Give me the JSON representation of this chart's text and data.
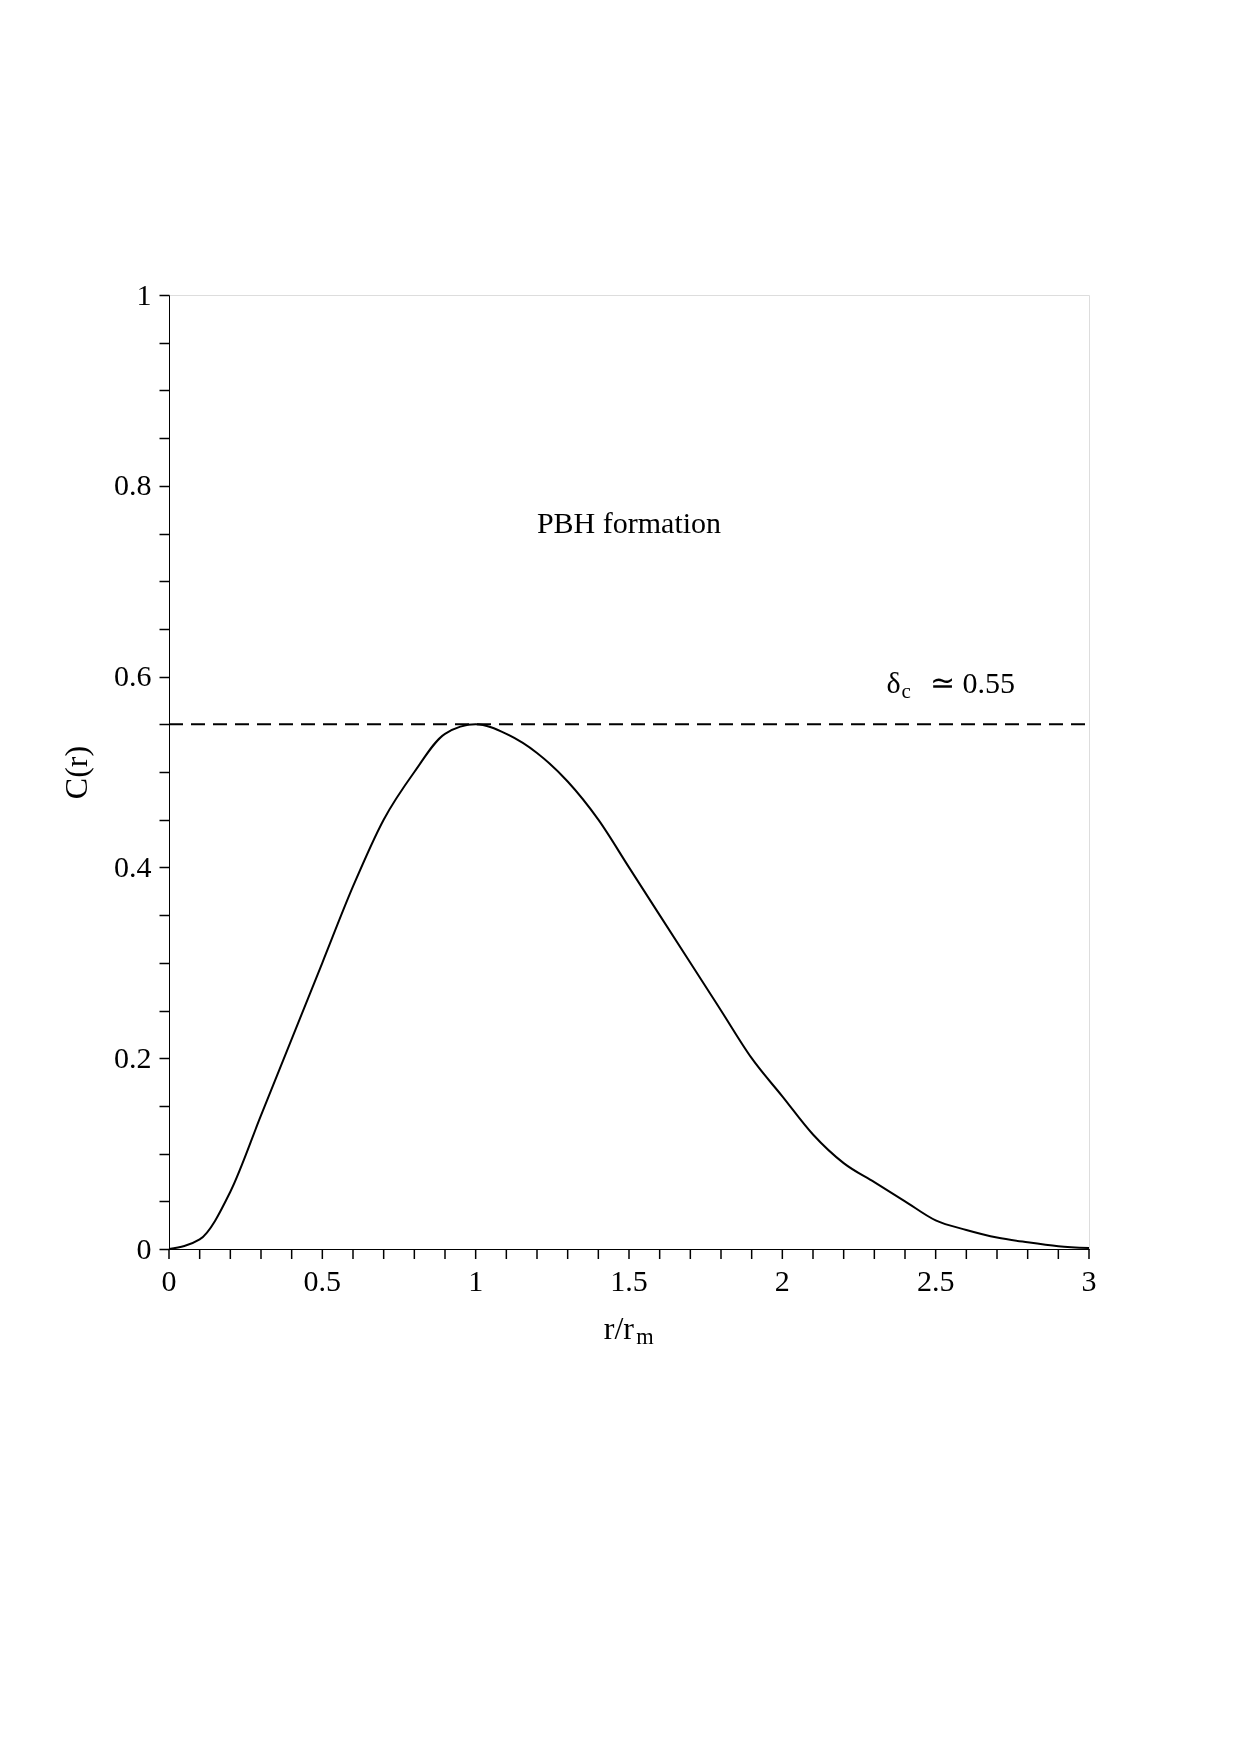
{
  "chart_data": {
    "type": "line",
    "xlabel": "r/r$_{m}$",
    "ylabel": "C(r)",
    "x": [
      0,
      0.1,
      0.2,
      0.3,
      0.4,
      0.5,
      0.6,
      0.7,
      0.8,
      0.9,
      1.0,
      1.1,
      1.2,
      1.3,
      1.4,
      1.5,
      1.6,
      1.7,
      1.8,
      1.9,
      2.0,
      2.1,
      2.2,
      2.3,
      2.4,
      2.5,
      2.6,
      2.7,
      2.8,
      2.9,
      3.0
    ],
    "series": [
      {
        "color": "#000000",
        "values": [
          0,
          0.01,
          0.06,
          0.14,
          0.22,
          0.3,
          0.38,
          0.45,
          0.5,
          0.54,
          0.55,
          0.54,
          0.52,
          0.49,
          0.45,
          0.4,
          0.35,
          0.3,
          0.25,
          0.2,
          0.16,
          0.12,
          0.09,
          0.07,
          0.05,
          0.03,
          0.02,
          0.012,
          0.007,
          0.003,
          0.001
        ]
      }
    ],
    "xlim": [
      0,
      3
    ],
    "ylim": [
      0,
      1
    ],
    "xticks": [
      0,
      {
        "value": 0.1,
        "label": null
      },
      {
        "value": 0.2,
        "label": null
      },
      {
        "value": 0.3,
        "label": null
      },
      {
        "value": 0.4,
        "label": null
      },
      0.5,
      {
        "value": 0.6,
        "label": null
      },
      {
        "value": 0.7,
        "label": null
      },
      {
        "value": 0.8,
        "label": null
      },
      {
        "value": 0.9,
        "label": null
      },
      1,
      {
        "value": 1.1,
        "label": null
      },
      {
        "value": 1.2,
        "label": null
      },
      {
        "value": 1.3,
        "label": null
      },
      {
        "value": 1.4,
        "label": null
      },
      1.5,
      {
        "value": 1.6,
        "label": null
      },
      {
        "value": 1.7,
        "label": null
      },
      {
        "value": 1.8,
        "label": null
      },
      {
        "value": 1.9,
        "label": null
      },
      2,
      {
        "value": 2.1,
        "label": null
      },
      {
        "value": 2.2,
        "label": null
      },
      {
        "value": 2.3,
        "label": null
      },
      {
        "value": 2.4,
        "label": null
      },
      2.5,
      {
        "value": 2.6,
        "label": null
      },
      {
        "value": 2.7,
        "label": null
      },
      {
        "value": 2.8,
        "label": null
      },
      {
        "value": 2.9,
        "label": null
      },
      3
    ],
    "yticks": [
      0,
      {
        "value": 0.05,
        "label": null
      },
      {
        "value": 0.1,
        "label": null
      },
      {
        "value": 0.15,
        "label": null
      },
      0.2,
      {
        "value": 0.25,
        "label": null
      },
      {
        "value": 0.3,
        "label": null
      },
      {
        "value": 0.35,
        "label": null
      },
      0.4,
      {
        "value": 0.45,
        "label": null
      },
      {
        "value": 0.5,
        "label": null
      },
      {
        "value": 0.55,
        "label": null
      },
      0.6,
      {
        "value": 0.65,
        "label": null
      },
      {
        "value": 0.7,
        "label": null
      },
      {
        "value": 0.75,
        "label": null
      },
      0.8,
      {
        "value": 0.85,
        "label": null
      },
      {
        "value": 0.9,
        "label": null
      },
      {
        "value": 0.95,
        "label": null
      },
      1
    ],
    "ref_lines": [
      {
        "axis": "y",
        "value": 0.55,
        "label": "δ$_{c}$ ≃ 0.55",
        "color": "#000000",
        "line_style": "dashed"
      }
    ],
    "annotations": [
      "PBH formation"
    ],
    "grid": false,
    "line_style": "solid",
    "marker": "none"
  }
}
